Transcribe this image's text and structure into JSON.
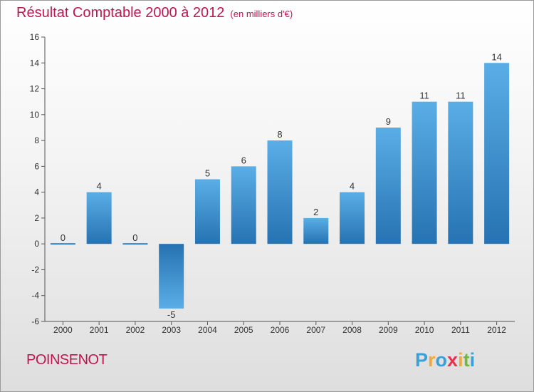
{
  "header": {
    "title": "Résultat Comptable 2000 à 2012",
    "subtitle": "(en milliers d'€)"
  },
  "footer": {
    "place": "POINSENOT",
    "logo_letters": [
      "P",
      "r",
      "o",
      "x",
      "i",
      "t",
      "i"
    ]
  },
  "colors": {
    "bar_light": "#5aaee6",
    "bar_dark": "#2672b2",
    "title": "#c0154f"
  },
  "chart_data": {
    "type": "bar",
    "title": "Résultat Comptable 2000 à 2012",
    "subtitle": "(en milliers d'€)",
    "xlabel": "",
    "ylabel": "",
    "categories": [
      "2000",
      "2001",
      "2002",
      "2003",
      "2004",
      "2005",
      "2006",
      "2007",
      "2008",
      "2009",
      "2010",
      "2011",
      "2012"
    ],
    "values": [
      0,
      4,
      0,
      -5,
      5,
      6,
      8,
      2,
      4,
      9,
      11,
      11,
      14
    ],
    "ylim": [
      -6,
      16
    ],
    "yticks": [
      -6,
      -4,
      -2,
      0,
      2,
      4,
      6,
      8,
      10,
      12,
      14,
      16
    ],
    "grid": false,
    "legend": "none"
  }
}
